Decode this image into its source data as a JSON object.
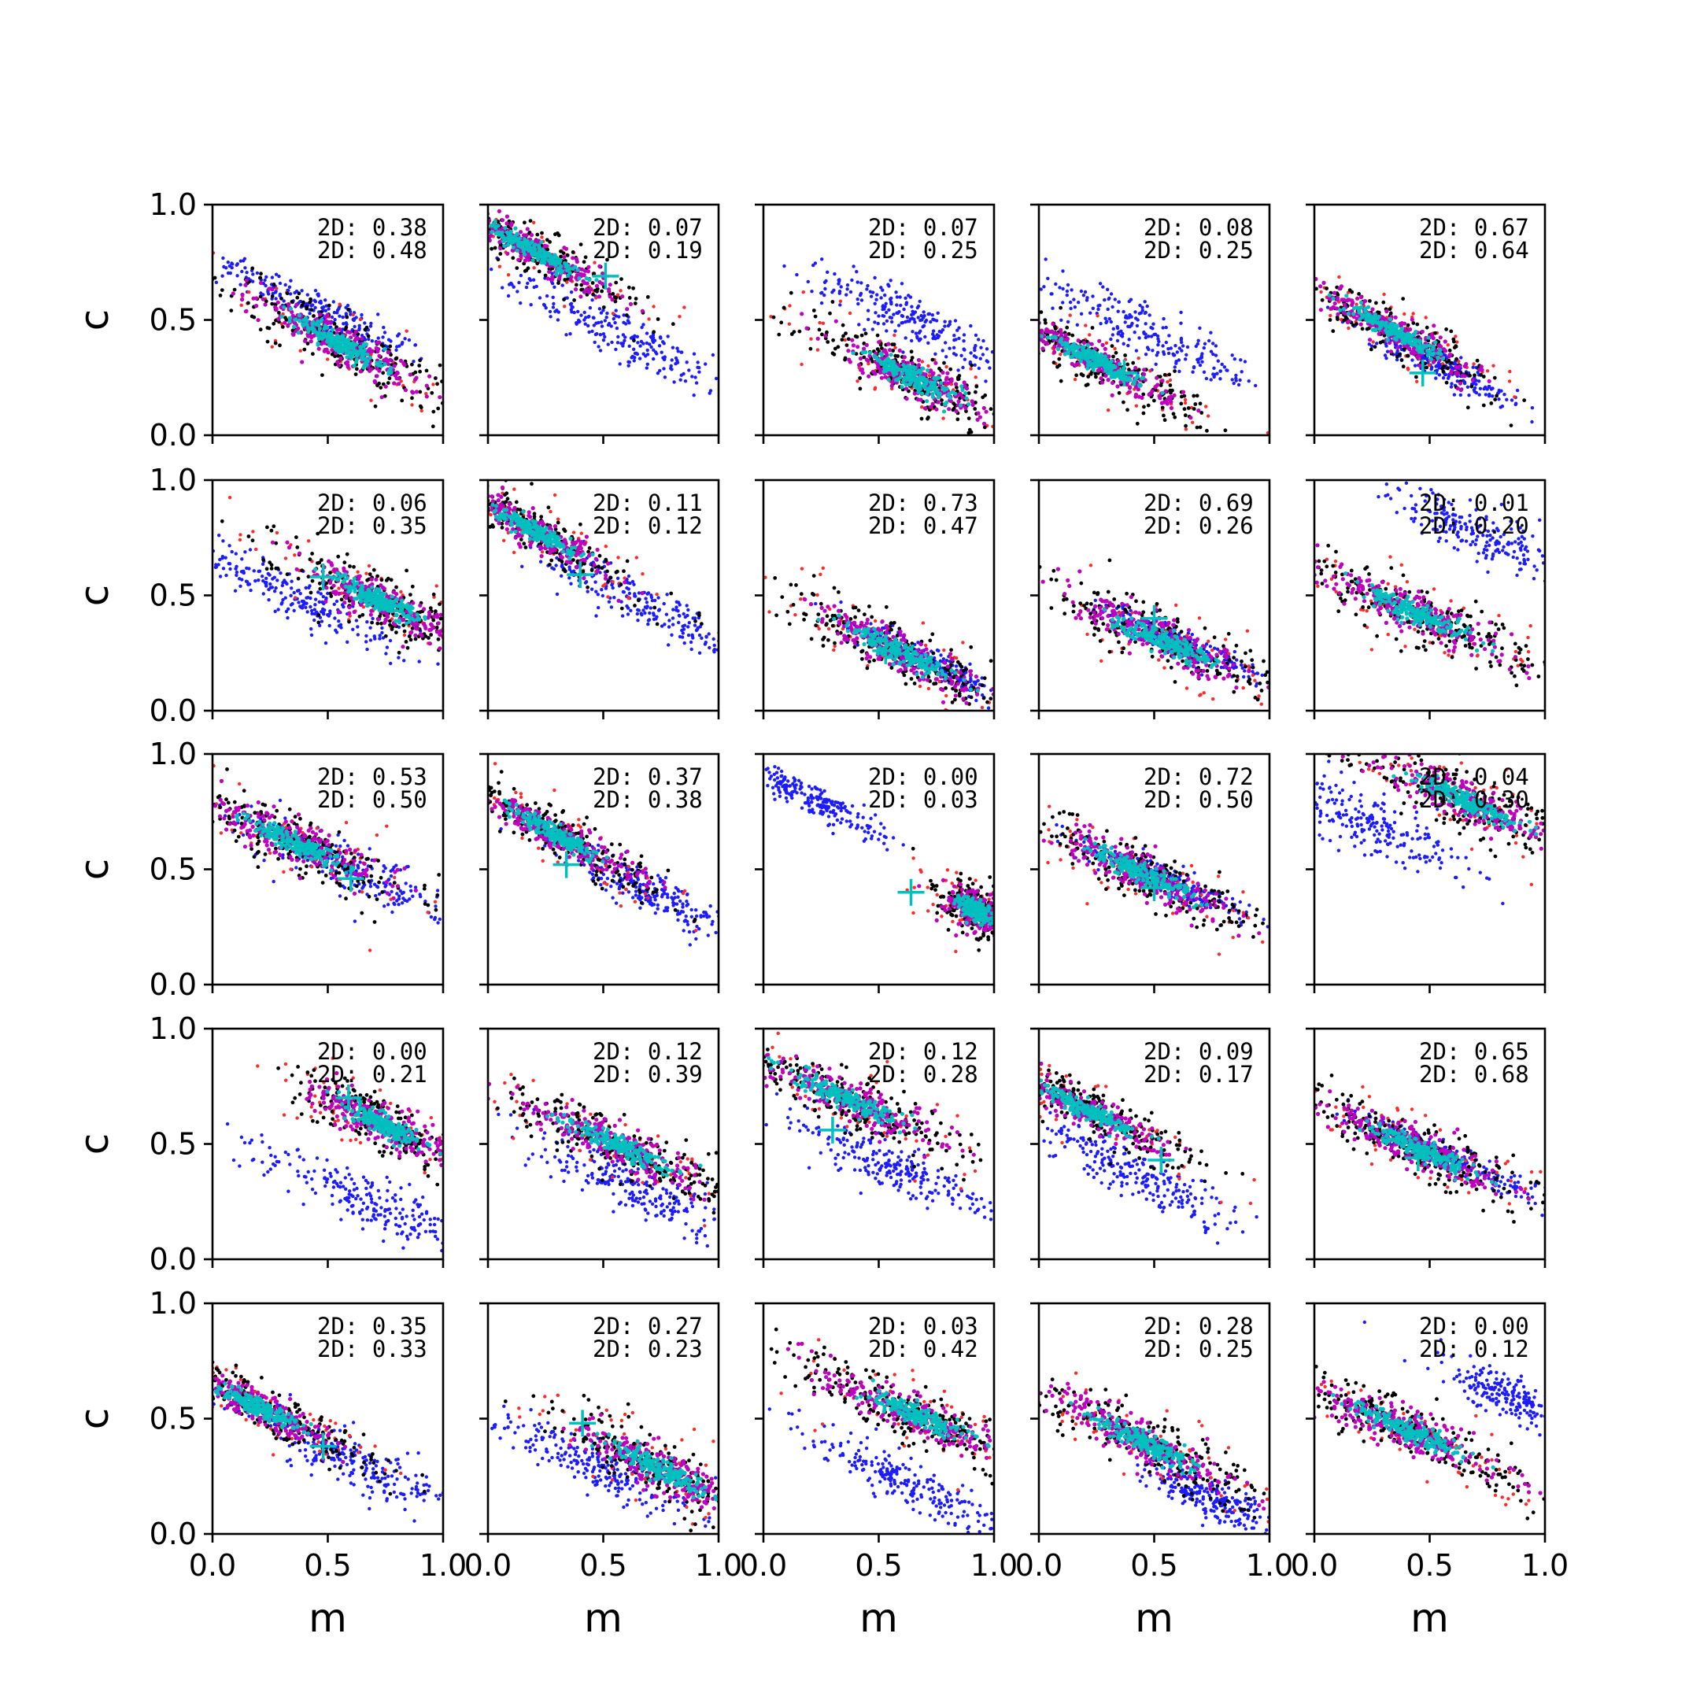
{
  "chart_data": {
    "type": "scatter",
    "layout": "5x5 grid of subplots, shared axes",
    "xlabel": "m",
    "ylabel": "c",
    "xlim": [
      0.0,
      1.0
    ],
    "ylim": [
      0.0,
      1.0
    ],
    "xticks": [
      "0.0",
      "0.5",
      "1.0"
    ],
    "yticks": [
      "0.0",
      "0.5",
      "1.0"
    ],
    "stat_prefix": "2D:",
    "colors": {
      "red": "#ff2a2a",
      "black": "#000000",
      "blue": "#1c1cff",
      "magenta": "#bf00bf",
      "cyan": "#00bfbf",
      "marker": "#00bfbf"
    },
    "panels": [
      {
        "stats": [
          "0.38",
          "0.48"
        ],
        "main": [
          0.55,
          0.4,
          -0.55,
          0.28,
          0.05
        ],
        "blue": [
          0.45,
          0.55,
          -0.5,
          0.28,
          0.04
        ],
        "marker": null
      },
      {
        "stats": [
          "0.07",
          "0.19"
        ],
        "main": [
          0.2,
          0.8,
          -0.55,
          0.26,
          0.04
        ],
        "blue": [
          0.55,
          0.45,
          -0.5,
          0.3,
          0.05
        ],
        "marker": [
          0.51,
          0.69
        ]
      },
      {
        "stats": [
          "0.07",
          "0.25"
        ],
        "main": [
          0.65,
          0.25,
          -0.5,
          0.28,
          0.05
        ],
        "blue": [
          0.65,
          0.5,
          -0.5,
          0.26,
          0.05
        ],
        "marker": null
      },
      {
        "stats": [
          "0.08",
          "0.25"
        ],
        "main": [
          0.25,
          0.32,
          -0.5,
          0.26,
          0.04
        ],
        "blue": [
          0.45,
          0.45,
          -0.5,
          0.3,
          0.05
        ],
        "marker": [
          0.37,
          0.27
        ]
      },
      {
        "stats": [
          "0.67",
          "0.64"
        ],
        "main": [
          0.35,
          0.45,
          -0.55,
          0.26,
          0.04
        ],
        "blue": [
          0.55,
          0.3,
          -0.5,
          0.18,
          0.03
        ],
        "marker": [
          0.47,
          0.27
        ]
      },
      {
        "stats": [
          "0.06",
          "0.35"
        ],
        "main": [
          0.72,
          0.48,
          -0.5,
          0.26,
          0.05
        ],
        "blue": [
          0.35,
          0.5,
          -0.5,
          0.28,
          0.05
        ],
        "marker": [
          0.48,
          0.58
        ]
      },
      {
        "stats": [
          "0.11",
          "0.12"
        ],
        "main": [
          0.2,
          0.78,
          -0.55,
          0.24,
          0.04
        ],
        "blue": [
          0.7,
          0.45,
          -0.5,
          0.26,
          0.05
        ],
        "marker": [
          0.4,
          0.59
        ]
      },
      {
        "stats": [
          "0.73",
          "0.47"
        ],
        "main": [
          0.6,
          0.25,
          -0.5,
          0.3,
          0.05
        ],
        "blue": [
          0.75,
          0.2,
          -0.5,
          0.18,
          0.03
        ],
        "marker": [
          0.53,
          0.26
        ]
      },
      {
        "stats": [
          "0.69",
          "0.26"
        ],
        "main": [
          0.55,
          0.3,
          -0.45,
          0.3,
          0.05
        ],
        "blue": [
          0.6,
          0.3,
          -0.45,
          0.2,
          0.03
        ],
        "marker": [
          0.5,
          0.4
        ]
      },
      {
        "stats": [
          "0.01",
          "0.20"
        ],
        "main": [
          0.45,
          0.42,
          -0.45,
          0.3,
          0.05
        ],
        "blue": [
          0.75,
          0.75,
          -0.45,
          0.22,
          0.05
        ],
        "marker": null
      },
      {
        "stats": [
          "0.53",
          "0.50"
        ],
        "main": [
          0.35,
          0.62,
          -0.45,
          0.28,
          0.05
        ],
        "blue": [
          0.6,
          0.5,
          -0.45,
          0.26,
          0.05
        ],
        "marker": [
          0.6,
          0.46
        ]
      },
      {
        "stats": [
          "0.37",
          "0.38"
        ],
        "main": [
          0.3,
          0.65,
          -0.55,
          0.26,
          0.04
        ],
        "blue": [
          0.7,
          0.4,
          -0.5,
          0.22,
          0.04
        ],
        "marker": [
          0.34,
          0.52
        ]
      },
      {
        "stats": [
          "0.00",
          "0.03"
        ],
        "main": [
          0.92,
          0.32,
          -0.5,
          0.1,
          0.05
        ],
        "blue": [
          0.22,
          0.8,
          -0.5,
          0.18,
          0.03
        ],
        "marker": [
          0.64,
          0.4
        ]
      },
      {
        "stats": [
          "0.72",
          "0.50"
        ],
        "main": [
          0.45,
          0.48,
          -0.45,
          0.3,
          0.05
        ],
        "blue": [
          0.55,
          0.45,
          -0.45,
          0.2,
          0.03
        ],
        "marker": [
          0.5,
          0.42
        ]
      },
      {
        "stats": [
          "0.04",
          "0.30"
        ],
        "main": [
          0.65,
          0.8,
          -0.45,
          0.3,
          0.05
        ],
        "blue": [
          0.25,
          0.7,
          -0.45,
          0.24,
          0.06
        ],
        "marker": null
      },
      {
        "stats": [
          "0.00",
          "0.21"
        ],
        "main": [
          0.75,
          0.58,
          -0.5,
          0.24,
          0.05
        ],
        "blue": [
          0.68,
          0.25,
          -0.45,
          0.28,
          0.05
        ],
        "marker": [
          0.59,
          0.7
        ]
      },
      {
        "stats": [
          "0.12",
          "0.39"
        ],
        "main": [
          0.55,
          0.5,
          -0.45,
          0.3,
          0.05
        ],
        "blue": [
          0.65,
          0.3,
          -0.45,
          0.26,
          0.05
        ],
        "marker": null
      },
      {
        "stats": [
          "0.12",
          "0.28"
        ],
        "main": [
          0.35,
          0.7,
          -0.45,
          0.3,
          0.05
        ],
        "blue": [
          0.55,
          0.4,
          -0.45,
          0.26,
          0.05
        ],
        "marker": [
          0.3,
          0.56
        ]
      },
      {
        "stats": [
          "0.09",
          "0.17"
        ],
        "main": [
          0.2,
          0.65,
          -0.5,
          0.26,
          0.04
        ],
        "blue": [
          0.45,
          0.35,
          -0.5,
          0.26,
          0.05
        ],
        "marker": [
          0.53,
          0.43
        ]
      },
      {
        "stats": [
          "0.65",
          "0.68"
        ],
        "main": [
          0.45,
          0.48,
          -0.45,
          0.3,
          0.05
        ],
        "blue": [
          0.55,
          0.45,
          -0.45,
          0.2,
          0.03
        ],
        "marker": [
          0.45,
          0.44
        ]
      },
      {
        "stats": [
          "0.35",
          "0.33"
        ],
        "main": [
          0.2,
          0.55,
          -0.5,
          0.26,
          0.04
        ],
        "blue": [
          0.6,
          0.32,
          -0.5,
          0.24,
          0.05
        ],
        "marker": [
          0.48,
          0.38
        ]
      },
      {
        "stats": [
          "0.27",
          "0.23"
        ],
        "main": [
          0.75,
          0.28,
          -0.5,
          0.26,
          0.05
        ],
        "blue": [
          0.45,
          0.3,
          -0.45,
          0.26,
          0.05
        ],
        "marker": [
          0.41,
          0.48
        ]
      },
      {
        "stats": [
          "0.03",
          "0.42"
        ],
        "main": [
          0.65,
          0.52,
          -0.45,
          0.3,
          0.05
        ],
        "blue": [
          0.62,
          0.22,
          -0.45,
          0.24,
          0.05
        ],
        "marker": null
      },
      {
        "stats": [
          "0.28",
          "0.25"
        ],
        "main": [
          0.45,
          0.4,
          -0.5,
          0.3,
          0.05
        ],
        "blue": [
          0.75,
          0.15,
          -0.45,
          0.16,
          0.04
        ],
        "marker": null
      },
      {
        "stats": [
          "0.00",
          "0.12"
        ],
        "main": [
          0.4,
          0.45,
          -0.45,
          0.3,
          0.05
        ],
        "blue": [
          0.88,
          0.58,
          -0.45,
          0.18,
          0.05
        ],
        "marker": null
      }
    ]
  }
}
